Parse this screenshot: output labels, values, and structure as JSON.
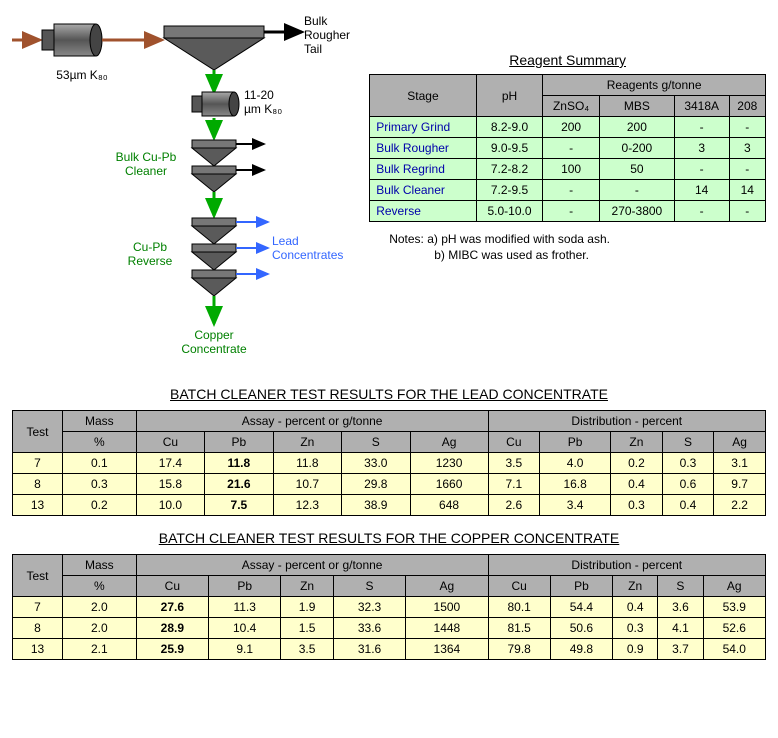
{
  "flow": {
    "grind1": "53µm K₈₀",
    "grind2_a": "11-20",
    "grind2_b": "µm K₈₀",
    "bulk_tail_a": "Bulk",
    "bulk_tail_b": "Rougher",
    "bulk_tail_c": "Tail",
    "cleaner_a": "Bulk Cu-Pb",
    "cleaner_b": "Cleaner",
    "reverse_a": "Cu-Pb",
    "reverse_b": "Reverse",
    "lead_a": "Lead",
    "lead_b": "Concentrates",
    "copper_a": "Copper",
    "copper_b": "Concentrate"
  },
  "reagent": {
    "title": "Reagent Summary",
    "head": {
      "stage": "Stage",
      "ph": "pH",
      "group": "Reagents g/tonne",
      "znso4": "ZnSO₄",
      "mbs": "MBS",
      "a3418": "3418A",
      "r208": "208"
    },
    "rows": [
      {
        "stage": "Primary Grind",
        "ph": "8.2-9.0",
        "znso4": "200",
        "mbs": "200",
        "a": "-",
        "b": "-"
      },
      {
        "stage": "Bulk Rougher",
        "ph": "9.0-9.5",
        "znso4": "-",
        "mbs": "0-200",
        "a": "3",
        "b": "3"
      },
      {
        "stage": "Bulk Regrind",
        "ph": "7.2-8.2",
        "znso4": "100",
        "mbs": "50",
        "a": "-",
        "b": "-"
      },
      {
        "stage": "Bulk Cleaner",
        "ph": "7.2-9.5",
        "znso4": "-",
        "mbs": "-",
        "a": "14",
        "b": "14"
      },
      {
        "stage": "Reverse",
        "ph": "5.0-10.0",
        "znso4": "-",
        "mbs": "270-3800",
        "a": "-",
        "b": "-"
      }
    ],
    "note_a": "Notes:  a)  pH was modified with soda ash.",
    "note_b": "b)  MIBC was used as frother."
  },
  "lead_table": {
    "title": "BATCH CLEANER TEST RESULTS FOR THE LEAD CONCENTRATE",
    "head": {
      "test": "Test",
      "mass": "Mass",
      "assay": "Assay  - percent or g/tonne",
      "dist": "Distribution - percent",
      "pct": "%",
      "cu": "Cu",
      "pb": "Pb",
      "zn": "Zn",
      "s": "S",
      "ag": "Ag"
    },
    "rows": [
      {
        "t": "7",
        "m": "0.1",
        "acu": "17.4",
        "apb": "11.8",
        "azn": "11.8",
        "as": "33.0",
        "aag": "1230",
        "dcu": "3.5",
        "dpb": "4.0",
        "dzn": "0.2",
        "ds": "0.3",
        "dag": "3.1"
      },
      {
        "t": "8",
        "m": "0.3",
        "acu": "15.8",
        "apb": "21.6",
        "azn": "10.7",
        "as": "29.8",
        "aag": "1660",
        "dcu": "7.1",
        "dpb": "16.8",
        "dzn": "0.4",
        "ds": "0.6",
        "dag": "9.7"
      },
      {
        "t": "13",
        "m": "0.2",
        "acu": "10.0",
        "apb": "7.5",
        "azn": "12.3",
        "as": "38.9",
        "aag": "648",
        "dcu": "2.6",
        "dpb": "3.4",
        "dzn": "0.3",
        "ds": "0.4",
        "dag": "2.2"
      }
    ]
  },
  "copper_table": {
    "title": "BATCH CLEANER TEST RESULTS FOR THE COPPER CONCENTRATE",
    "head": {
      "test": "Test",
      "mass": "Mass",
      "assay": "Assay  - percent or g/tonne",
      "dist": "Distribution - percent",
      "pct": "%",
      "cu": "Cu",
      "pb": "Pb",
      "zn": "Zn",
      "s": "S",
      "ag": "Ag"
    },
    "rows": [
      {
        "t": "7",
        "m": "2.0",
        "acu": "27.6",
        "apb": "11.3",
        "azn": "1.9",
        "as": "32.3",
        "aag": "1500",
        "dcu": "80.1",
        "dpb": "54.4",
        "dzn": "0.4",
        "ds": "3.6",
        "dag": "53.9"
      },
      {
        "t": "8",
        "m": "2.0",
        "acu": "28.9",
        "apb": "10.4",
        "azn": "1.5",
        "as": "33.6",
        "aag": "1448",
        "dcu": "81.5",
        "dpb": "50.6",
        "dzn": "0.3",
        "ds": "4.1",
        "dag": "52.6"
      },
      {
        "t": "13",
        "m": "2.1",
        "acu": "25.9",
        "apb": "9.1",
        "azn": "3.5",
        "as": "31.6",
        "aag": "1364",
        "dcu": "79.8",
        "dpb": "49.8",
        "dzn": "0.9",
        "ds": "3.7",
        "dag": "54.0"
      }
    ]
  },
  "colors": {
    "grinder_body": "#7a7a7a",
    "grinder_dark": "#4a4a4a",
    "cell_tri": "#5a5a5a",
    "cell_box": "#777777",
    "arrow_brown": "#a0522d",
    "arrow_green": "#00aa00",
    "arrow_black": "#000000",
    "arrow_blue": "#3366ff"
  }
}
